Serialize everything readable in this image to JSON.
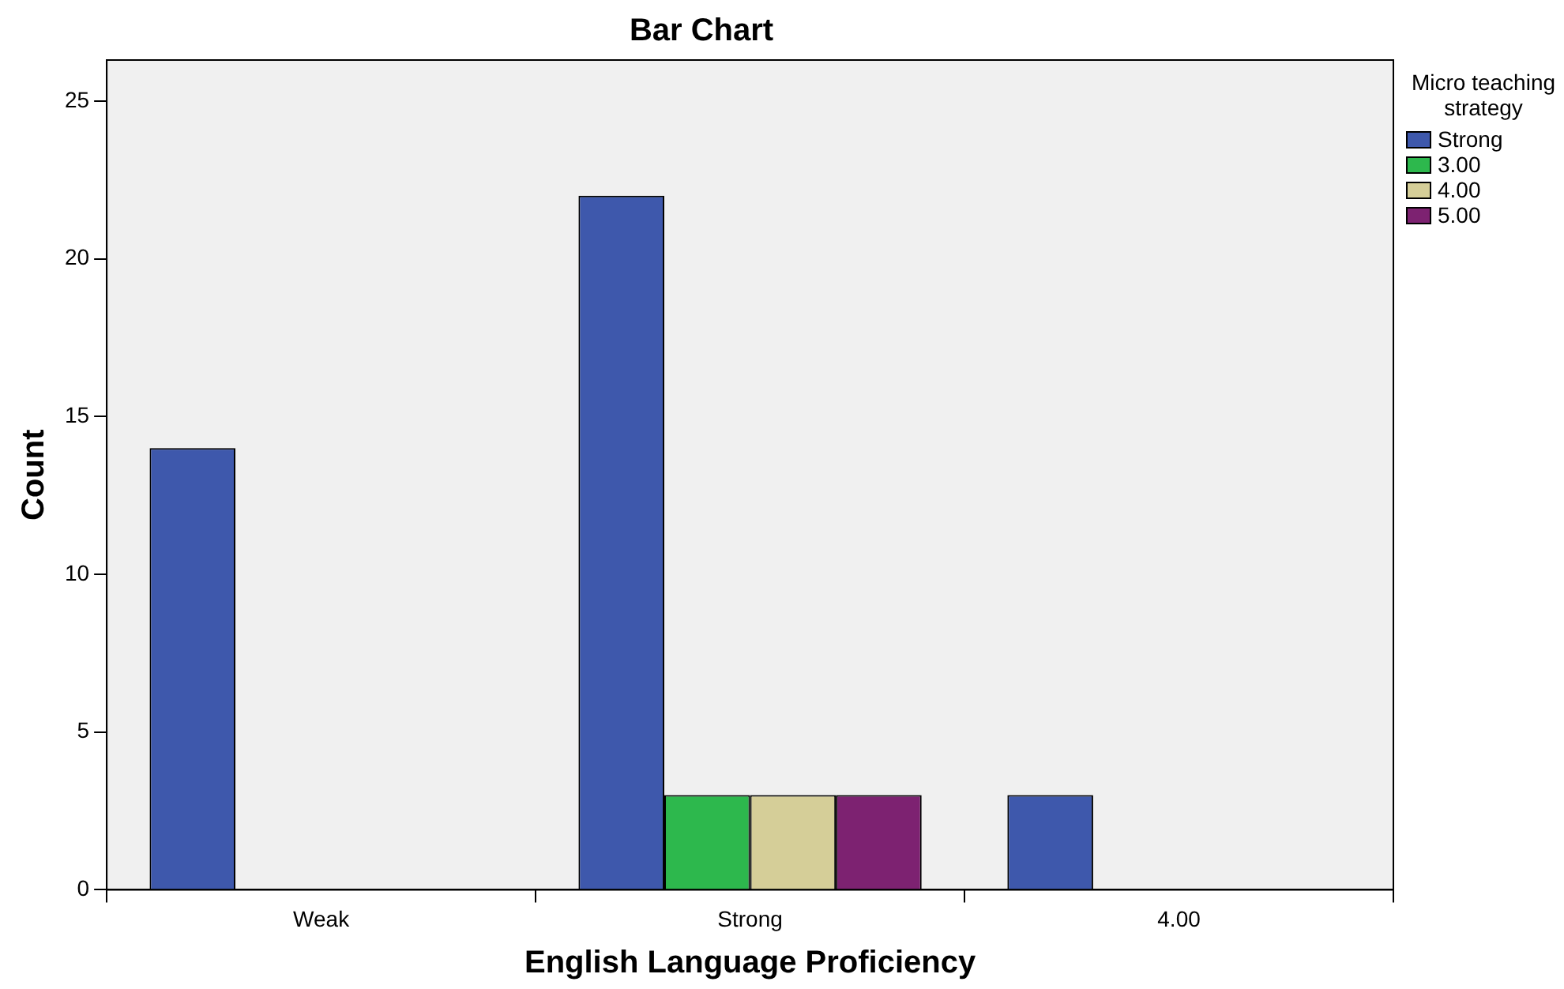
{
  "chart_data": {
    "type": "bar",
    "title": "Bar Chart",
    "xlabel": "English Language Proficiency",
    "ylabel": "Count",
    "legend_title": "Micro teaching strategy",
    "legend": "right",
    "grid": false,
    "categories": [
      "Weak",
      "Strong",
      "4.00"
    ],
    "series": [
      {
        "name": "Strong",
        "color": "#3e58ac",
        "values": [
          14,
          22,
          3
        ]
      },
      {
        "name": "3.00",
        "color": "#2db84d",
        "values": [
          null,
          3,
          null
        ]
      },
      {
        "name": "4.00",
        "color": "#d5ce98",
        "values": [
          null,
          3,
          null
        ]
      },
      {
        "name": "5.00",
        "color": "#7d2271",
        "values": [
          null,
          3,
          null
        ]
      }
    ],
    "ylim": [
      0,
      26.3
    ],
    "yticks": [
      0,
      5,
      10,
      15,
      20,
      25
    ]
  }
}
